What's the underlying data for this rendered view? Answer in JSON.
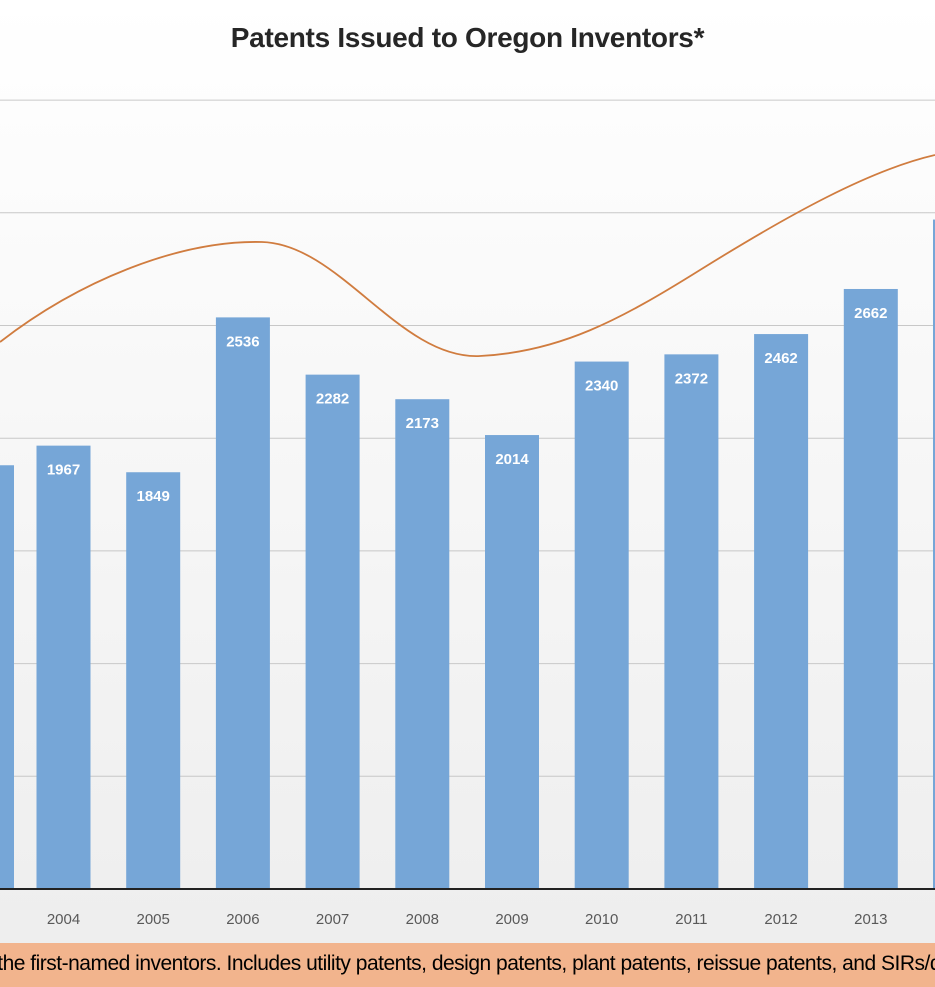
{
  "chart_data": {
    "type": "bar",
    "title": "Patents Issued to Oregon Inventors*",
    "categories": [
      "2004",
      "2005",
      "2006",
      "2007",
      "2008",
      "2009",
      "2010",
      "2011",
      "2012",
      "2013"
    ],
    "series": [
      {
        "values": [
          1967,
          1849,
          2536,
          2282,
          2173,
          2014,
          2340,
          2372,
          2462,
          2662
        ]
      }
    ],
    "trend_line": true,
    "grid": true,
    "colors": {
      "bars": "#76a6d7",
      "trend": "#d07c3f",
      "labels": "#ffffff"
    }
  },
  "footnote": "e residence of the first-named inventors.  Includes utility patents, design patents, plant patents, reissue patents, and SIRs/d"
}
